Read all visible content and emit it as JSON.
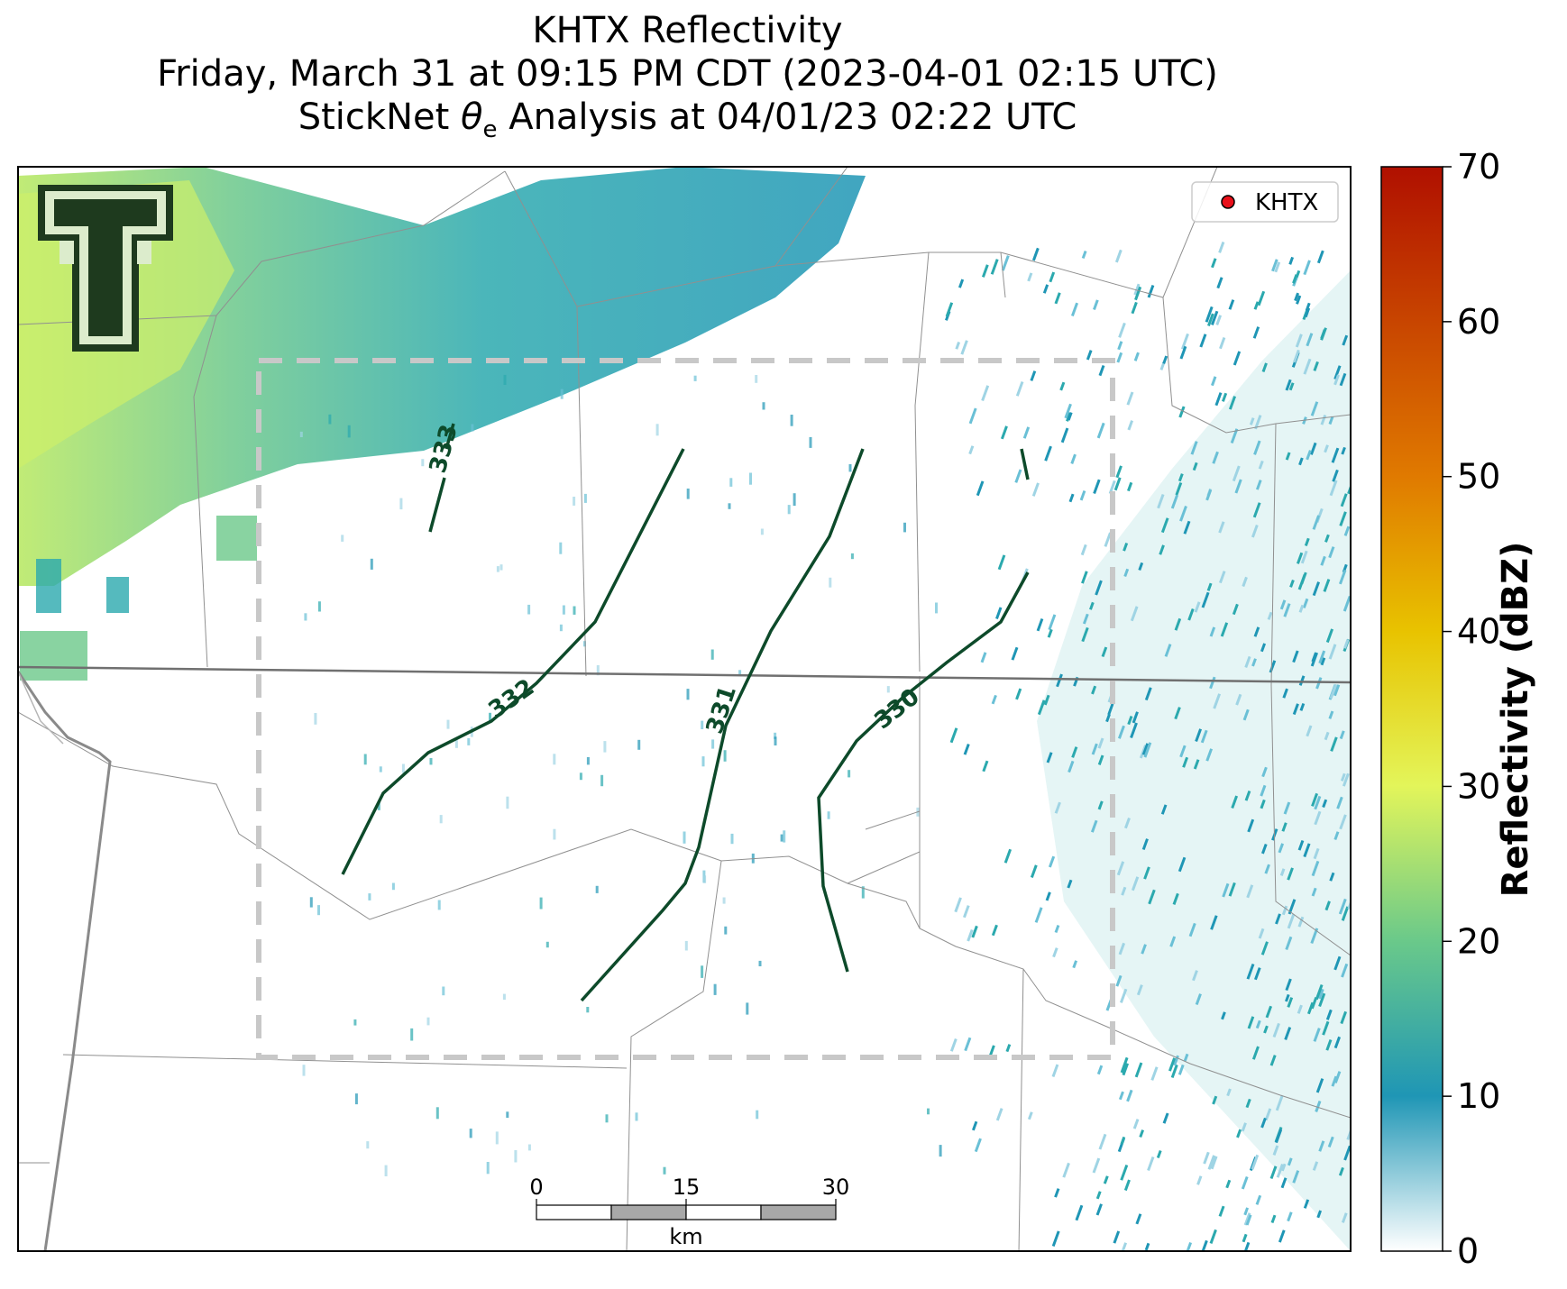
{
  "title": {
    "line1": "KHTX Reflectivity",
    "line2": "Friday, March 31 at 09:15 PM CDT (2023-04-01 02:15 UTC)",
    "line3_prefix": "StickNet ",
    "line3_symbol": "θ",
    "line3_subscript": "e",
    "line3_suffix": " Analysis at 04/01/23 02:22 UTC"
  },
  "legend": {
    "label": "KHTX",
    "marker_color": "#e8101a"
  },
  "colorbar": {
    "title": "Reflectivity (dBZ)",
    "min": 0,
    "max": 70,
    "ticks": [
      "0",
      "10",
      "20",
      "30",
      "40",
      "50",
      "60",
      "70"
    ],
    "colors": [
      "#ffffff",
      "#1f96b5",
      "#6ac98a",
      "#e3f55a",
      "#e8c300",
      "#e07a00",
      "#b01000"
    ]
  },
  "contours": [
    {
      "label": "333"
    },
    {
      "label": "332"
    },
    {
      "label": "331"
    },
    {
      "label": "330"
    }
  ],
  "contour_color": "#0d4a2a",
  "scale_bar": {
    "ticks": [
      "0",
      "15",
      "30"
    ],
    "unit": "km"
  },
  "logo": {
    "name": "Texas Tech double-T logo"
  }
}
